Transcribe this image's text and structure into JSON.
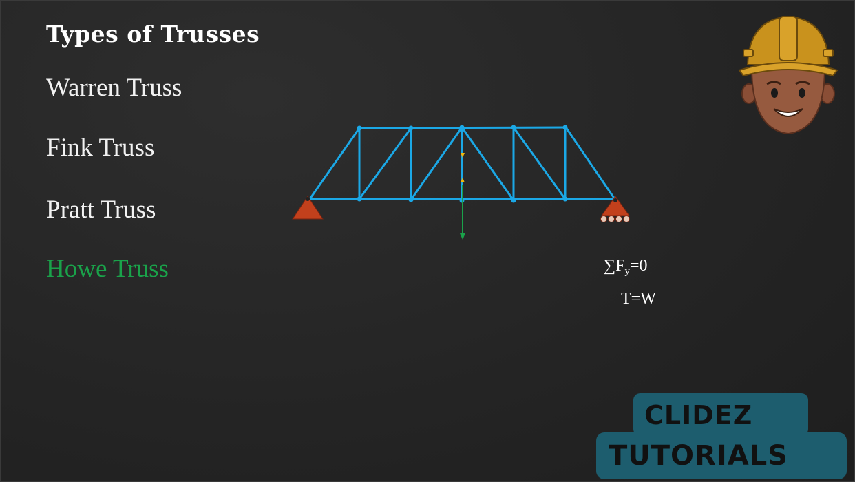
{
  "slide": {
    "title": "Types of Trusses",
    "truss_types": [
      {
        "label": "Warren Truss",
        "active": false
      },
      {
        "label": "Fink Truss",
        "active": false
      },
      {
        "label": "Pratt Truss",
        "active": false
      },
      {
        "label": "Howe Truss",
        "active": true
      }
    ],
    "equation_sum": "∑F",
    "equation_sub": "y",
    "equation_rhs": "=0",
    "equation_result": "T=W"
  },
  "logo": {
    "line1": "CLIDEZ",
    "line2": "TUTORIALS"
  },
  "colors": {
    "background": "#262626",
    "truss_member": "#1ba8e6",
    "support": "#c2401c",
    "active_item": "#1aa24a",
    "force_up": "#f1b70c",
    "force_down": "#1aa24a",
    "logo_bg": "#1d5d6e"
  }
}
